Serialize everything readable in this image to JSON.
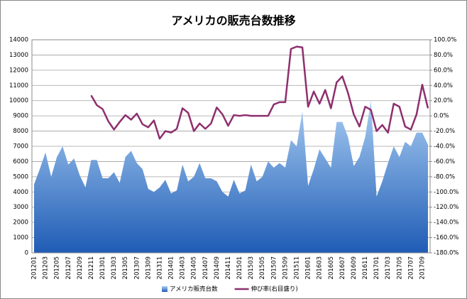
{
  "chart_data": {
    "type": "combo",
    "title": "アメリカの販売台数推移",
    "categories": [
      "201201",
      null,
      "201203",
      null,
      "201205",
      null,
      "201207",
      null,
      "201209",
      null,
      "201211",
      null,
      "201301",
      null,
      "201303",
      null,
      "201305",
      null,
      "201307",
      null,
      "201309",
      null,
      "201311",
      null,
      "201401",
      null,
      "201403",
      null,
      "201405",
      null,
      "201407",
      null,
      "201409",
      null,
      "201411",
      null,
      "201501",
      null,
      "201503",
      null,
      "201505",
      null,
      "201507",
      null,
      "201509",
      null,
      "201511",
      null,
      "201601",
      null,
      "201603",
      null,
      "201605",
      null,
      "201607",
      null,
      "201609",
      null,
      "201611",
      null,
      "201701",
      null,
      "201703",
      null,
      "201705",
      null,
      "201707",
      null,
      "201709",
      null
    ],
    "series": [
      {
        "name": "アメリカ販売台数",
        "type": "area",
        "color": "#3a78c9",
        "values": [
          4500,
          5500,
          6600,
          5000,
          6300,
          7000,
          5800,
          6200,
          5100,
          4300,
          6100,
          6100,
          4900,
          4900,
          5300,
          4600,
          6300,
          6700,
          5900,
          5500,
          4200,
          4000,
          4300,
          4800,
          3900,
          4100,
          5800,
          4700,
          5000,
          5900,
          4900,
          4900,
          4700,
          4000,
          3700,
          4800,
          3900,
          4100,
          5800,
          4700,
          5000,
          6000,
          5600,
          5900,
          5600,
          7400,
          7000,
          9300,
          4400,
          5500,
          6800,
          6200,
          5600,
          8600,
          8600,
          7600,
          5700,
          6300,
          7600,
          10000,
          3700,
          4700,
          5900,
          7000,
          6300,
          7300,
          7000,
          7900,
          7900,
          7100
        ]
      },
      {
        "name": "伸び率(右目盛り)",
        "type": "line",
        "axis": "y2",
        "color": "#8e2f6e",
        "values": [
          null,
          null,
          null,
          null,
          null,
          null,
          null,
          null,
          null,
          null,
          27,
          14,
          9,
          -7,
          -18,
          -8,
          1,
          -5,
          3,
          -11,
          -15,
          -6,
          -30,
          -20,
          -22,
          -17,
          10,
          4,
          -20,
          -10,
          -17,
          -10,
          11,
          2,
          -13,
          1,
          0,
          1,
          0,
          0,
          0,
          0,
          15,
          18,
          18,
          88,
          91,
          90,
          12,
          32,
          16,
          34,
          10,
          44,
          52,
          30,
          2,
          -14,
          12,
          8,
          -20,
          -12,
          -22,
          16,
          12,
          -14,
          -18,
          2,
          41,
          10
        ]
      }
    ],
    "ylim": [
      0,
      14000
    ],
    "yticks": [
      0,
      1000,
      2000,
      3000,
      4000,
      5000,
      6000,
      7000,
      8000,
      9000,
      10000,
      11000,
      12000,
      13000,
      14000
    ],
    "y2lim": [
      -180,
      100
    ],
    "y2ticks": [
      {
        "value": -180,
        "label": "-180.0%"
      },
      {
        "value": -160,
        "label": "-160.0%"
      },
      {
        "value": -140,
        "label": "-140.0%"
      },
      {
        "value": -120,
        "label": "-120.0%"
      },
      {
        "value": -100,
        "label": "-100.0%"
      },
      {
        "value": -80,
        "label": "-80.0%"
      },
      {
        "value": -60,
        "label": "-60.0%"
      },
      {
        "value": -40,
        "label": "-40.0%"
      },
      {
        "value": -20,
        "label": "-20.0%"
      },
      {
        "value": 0,
        "label": "0.0%"
      },
      {
        "value": 20,
        "label": "20.0%"
      },
      {
        "value": 40,
        "label": "40.0%"
      },
      {
        "value": 60,
        "label": "60.0%"
      },
      {
        "value": 80,
        "label": "80.0%"
      },
      {
        "value": 100,
        "label": "100.0%"
      }
    ],
    "grid": true,
    "legend": "bottom"
  }
}
